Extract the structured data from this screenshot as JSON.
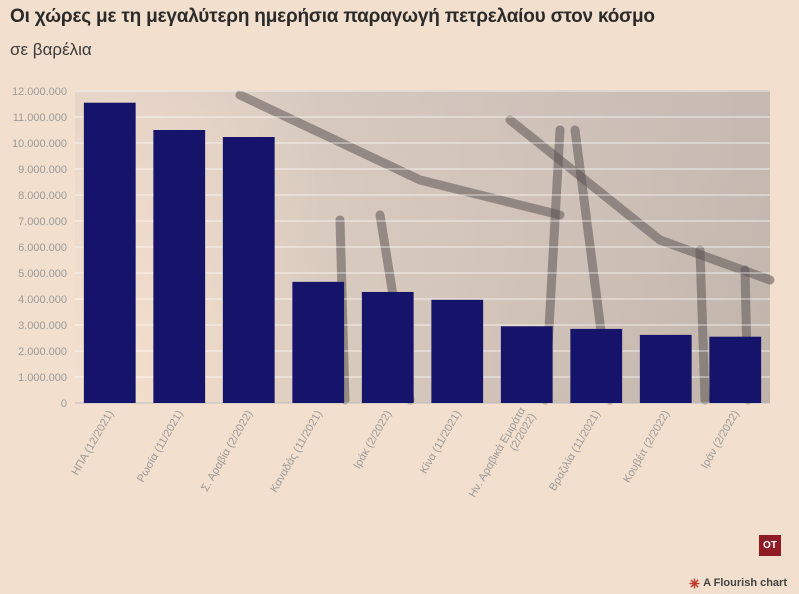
{
  "header": {
    "title": "Οι χώρες με τη μεγαλύτερη ημερήσια παραγωγή πετρελαίου στον κόσμο",
    "subtitle": "σε βαρέλια"
  },
  "logo": {
    "text": "OT",
    "color": "#8f1b24"
  },
  "credit": {
    "text": "A Flourish chart",
    "icon": "flourish-burst-icon",
    "icon_color": "#c0392b"
  },
  "colors": {
    "bar": "#16136b",
    "background": "#f3dfcd",
    "grid": "#ffffff",
    "tick_text": "#9a9a9a"
  },
  "chart_data": {
    "type": "bar",
    "title": "Οι χώρες με τη μεγαλύτερη ημερήσια παραγωγή πετρελαίου στον κόσμο",
    "subtitle": "σε βαρέλια",
    "categories": [
      "ΗΠΑ (12/2021)",
      "Ρωσία (11/2021)",
      "Σ. Αραβία (2/2022)",
      "Καναδάς (11/2021)",
      "Ιράκ (2/2022)",
      "Κίνα (11/2021)",
      "Ην. Αραβικά Εμιράτα (2/2022)",
      "Βραζιλία (11/2021)",
      "Κουβέιτ (2/2022)",
      "Ιράν (2/2022)"
    ],
    "values": [
      11550000,
      10500000,
      10230000,
      4660000,
      4270000,
      3970000,
      2950000,
      2850000,
      2620000,
      2550000
    ],
    "ylim": [
      0,
      12000000
    ],
    "yticks": [
      0,
      1000000,
      2000000,
      3000000,
      4000000,
      5000000,
      6000000,
      7000000,
      8000000,
      9000000,
      10000000,
      11000000,
      12000000
    ],
    "ytick_labels": [
      "0",
      "1.000.000",
      "2.000.000",
      "3.000.000",
      "4.000.000",
      "5.000.000",
      "6.000.000",
      "7.000.000",
      "8.000.000",
      "9.000.000",
      "10.000.000",
      "11.000.000",
      "12.000.000"
    ],
    "grid": true,
    "legend": "none"
  }
}
